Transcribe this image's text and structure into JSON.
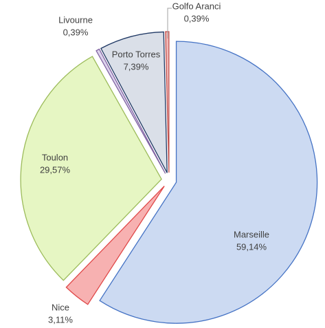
{
  "chart_data": {
    "type": "pie",
    "categories": [
      "Marseille",
      "Nice",
      "Toulon",
      "Livourne",
      "Porto Torres",
      "Golfo Aranci"
    ],
    "values": [
      59.14,
      3.11,
      29.57,
      0.39,
      7.39,
      0.39
    ],
    "value_labels": [
      "59,14%",
      "3,11%",
      "29,57%",
      "0,39%",
      "7,39%",
      "0,39%"
    ],
    "colors": [
      "#c6d6f1",
      "#f6a9a9",
      "#e3f5bd",
      "#d8cdea",
      "#d6dbe6",
      "#f0b0ae"
    ],
    "stroke_colors": [
      "#4472c4",
      "#e04848",
      "#9bbb59",
      "#8064a2",
      "#1f3864",
      "#c0504d"
    ]
  }
}
